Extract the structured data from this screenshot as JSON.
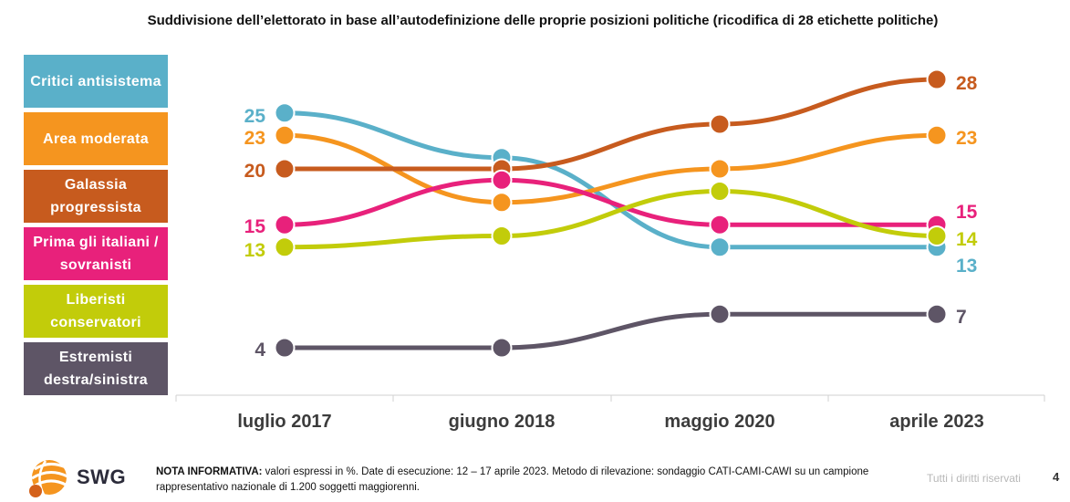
{
  "title": "Suddivisione dell’elettorato in base all’autodefinizione delle proprie posizioni politiche (ricodifica di 28 etichette politiche)",
  "chart_data": {
    "type": "line",
    "categories": [
      "luglio 2017",
      "giugno 2018",
      "maggio 2020",
      "aprile 2023"
    ],
    "series": [
      {
        "name": "Critici antisistema",
        "color": "#5ab0c9",
        "values": [
          25,
          21,
          13,
          13
        ],
        "labels": [
          "25",
          "13"
        ]
      },
      {
        "name": "Area moderata",
        "color": "#f5951f",
        "values": [
          23,
          17,
          20,
          23
        ],
        "labels": [
          "23",
          "23"
        ]
      },
      {
        "name": "Galassia progressista",
        "color": "#c75b1e",
        "values": [
          20,
          20,
          24,
          28
        ],
        "labels": [
          "20",
          "28"
        ]
      },
      {
        "name": "Prima gli italiani / sovranisti",
        "color": "#e8217b",
        "values": [
          15,
          19,
          15,
          15
        ],
        "labels": [
          "15",
          "15"
        ]
      },
      {
        "name": "Liberisti conservatori",
        "color": "#c2cc0a",
        "values": [
          13,
          14,
          18,
          14
        ],
        "labels": [
          "13",
          "14"
        ]
      },
      {
        "name": "Estremisti destra/sinistra",
        "color": "#5e5566",
        "values": [
          4,
          4,
          7,
          7
        ],
        "labels": [
          "4",
          "7"
        ]
      }
    ]
  },
  "legend": [
    {
      "label": "Critici antisistema",
      "color": "#5ab0c9"
    },
    {
      "label": "Area moderata",
      "color": "#f5951f"
    },
    {
      "label": "Galassia progressista",
      "color": "#c75b1e"
    },
    {
      "label": "Prima gli italiani / sovranisti",
      "color": "#e8217b"
    },
    {
      "label": "Liberisti conservatori",
      "color": "#c2cc0a"
    },
    {
      "label": "Estremisti destra/sinistra",
      "color": "#5e5566"
    }
  ],
  "footer": {
    "logo_text": "SWG",
    "note_bold": "NOTA INFORMATIVA:",
    "note_text": " valori espressi in %. Date di esecuzione: 12 – 17 aprile 2023. Metodo di rilevazione: sondaggio CATI-CAMI-CAWI su un campione rappresentativo nazionale di 1.200 soggetti maggiorenni.",
    "rights": "Tutti i diritti riservati",
    "page": "4"
  }
}
